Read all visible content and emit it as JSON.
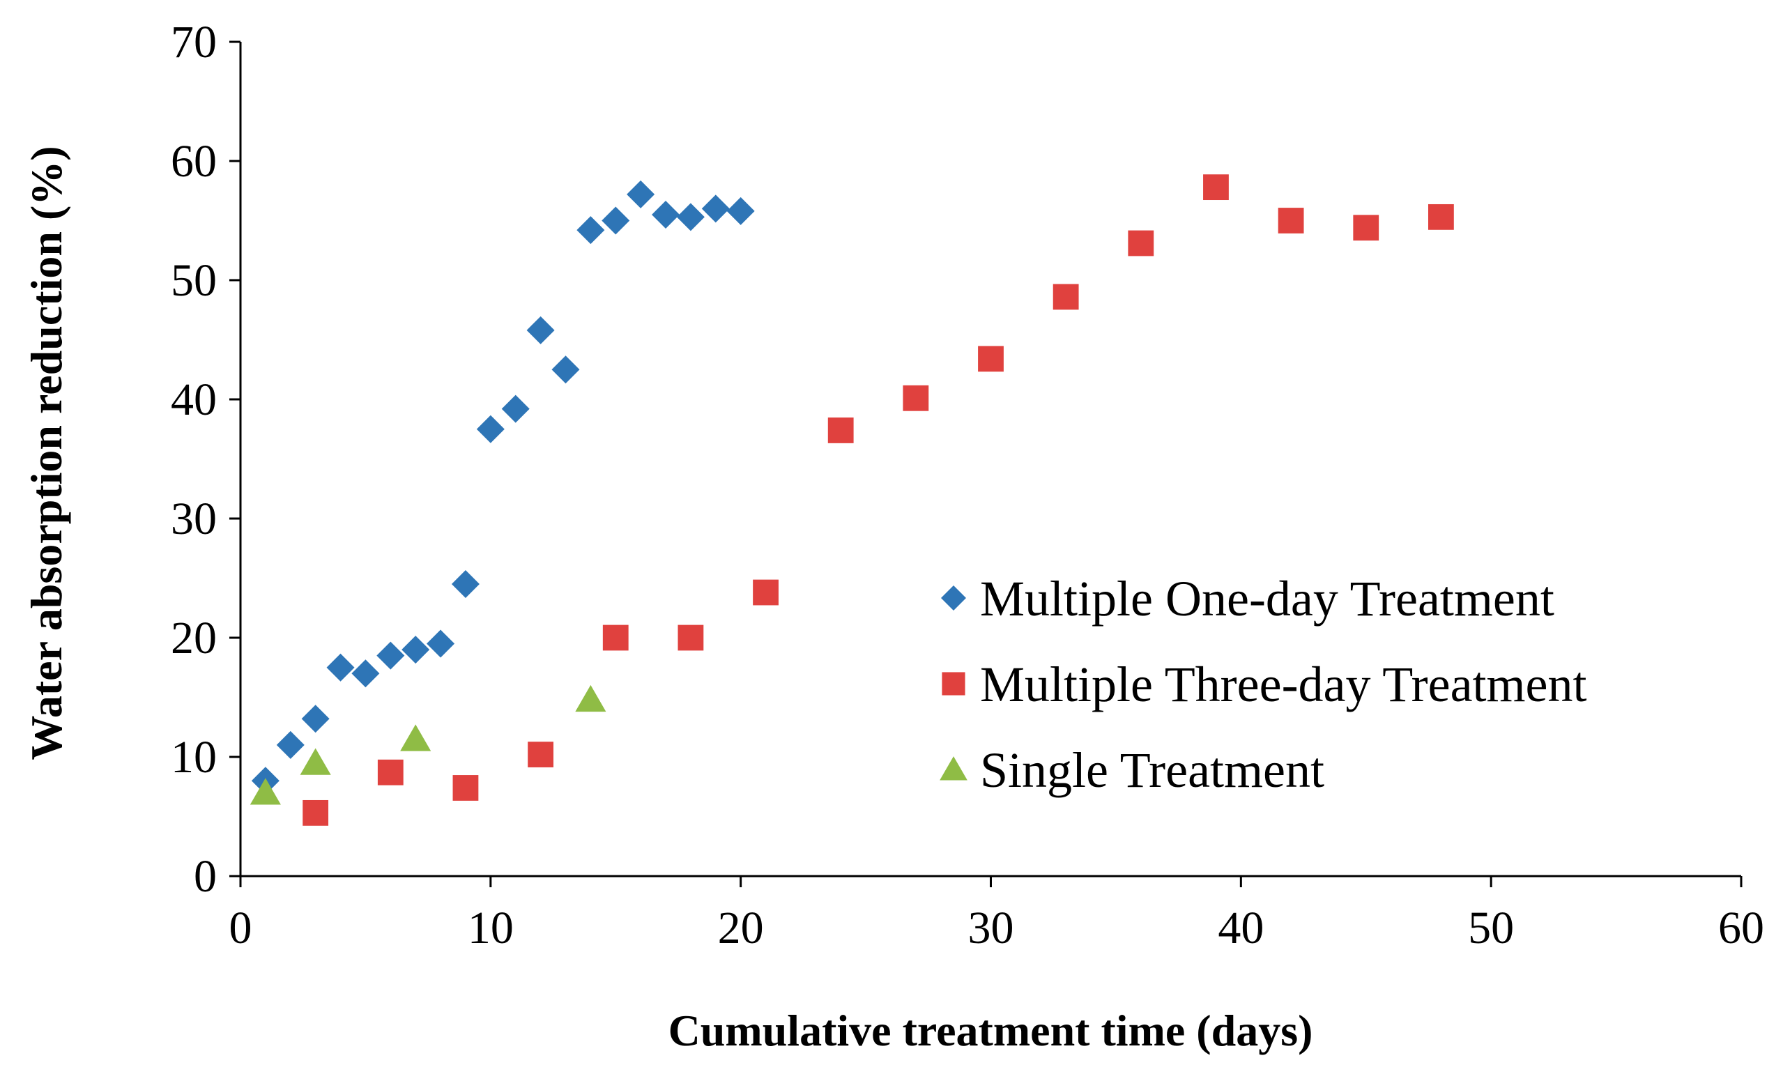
{
  "chart_data": {
    "type": "scatter",
    "title": "",
    "xlabel": "Cumulative treatment time (days)",
    "ylabel": "Water absorption reduction (%)",
    "xlim": [
      0,
      60
    ],
    "ylim": [
      0,
      70
    ],
    "x_ticks": [
      0,
      10,
      20,
      30,
      40,
      50,
      60
    ],
    "y_ticks": [
      0,
      10,
      20,
      30,
      40,
      50,
      60,
      70
    ],
    "x_tick_labels": [
      "0",
      "10",
      "20",
      "30",
      "40",
      "50",
      "60"
    ],
    "y_tick_labels": [
      "0",
      "10",
      "20",
      "30",
      "40",
      "50",
      "60",
      "70"
    ],
    "grid": false,
    "legend_position": "center-right",
    "series": [
      {
        "name": "Multiple One-day Treatment",
        "marker": "diamond",
        "color": "#2E75B6",
        "x": [
          1,
          2,
          3,
          4,
          5,
          6,
          7,
          8,
          9,
          10,
          11,
          12,
          13,
          14,
          15,
          16,
          17,
          18,
          19,
          20
        ],
        "y": [
          8.0,
          11.0,
          13.2,
          17.5,
          17.0,
          18.5,
          19.0,
          19.5,
          24.5,
          37.5,
          39.2,
          45.8,
          42.5,
          54.2,
          55.0,
          57.2,
          55.5,
          55.3,
          56.0,
          55.8
        ]
      },
      {
        "name": "Multiple Three-day Treatment",
        "marker": "square",
        "color": "#E0413E",
        "x": [
          3,
          6,
          9,
          12,
          15,
          18,
          21,
          24,
          27,
          30,
          33,
          36,
          39,
          42,
          45,
          48
        ],
        "y": [
          5.3,
          8.7,
          7.4,
          10.2,
          20.0,
          20.0,
          23.8,
          37.4,
          40.1,
          43.4,
          48.6,
          53.1,
          57.8,
          55.0,
          54.4,
          55.3
        ]
      },
      {
        "name": "Single Treatment",
        "marker": "triangle",
        "color": "#8FBC45",
        "x": [
          1,
          3,
          7,
          14
        ],
        "y": [
          7.0,
          9.5,
          11.5,
          14.8
        ]
      }
    ]
  }
}
